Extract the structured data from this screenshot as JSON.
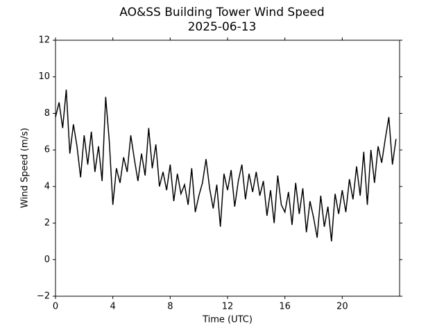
{
  "chart_data": {
    "type": "line",
    "title": "AO&SS Building Tower Wind Speed",
    "subtitle": "2025-06-13",
    "x_label": "Time (UTC)",
    "y_label": "Wind Speed (m/s)",
    "xlim": [
      0,
      24
    ],
    "ylim": [
      -2,
      12
    ],
    "xticks": [
      0,
      4,
      8,
      12,
      16,
      20
    ],
    "yticks": [
      {
        "value": -2,
        "label": "−2"
      },
      0,
      2,
      4,
      6,
      8,
      10,
      12
    ],
    "series": [
      {
        "name": "Wind Speed",
        "color": "#000000",
        "x": [
          0,
          0.25,
          0.5,
          0.75,
          1,
          1.25,
          1.5,
          1.75,
          2,
          2.25,
          2.5,
          2.75,
          3,
          3.25,
          3.5,
          3.75,
          4,
          4.25,
          4.5,
          4.75,
          5,
          5.25,
          5.5,
          5.75,
          6,
          6.25,
          6.5,
          6.75,
          7,
          7.25,
          7.5,
          7.75,
          8,
          8.25,
          8.5,
          8.75,
          9,
          9.25,
          9.5,
          9.75,
          10,
          10.25,
          10.5,
          10.75,
          11,
          11.25,
          11.5,
          11.75,
          12,
          12.25,
          12.5,
          12.75,
          13,
          13.25,
          13.5,
          13.75,
          14,
          14.25,
          14.5,
          14.75,
          15,
          15.25,
          15.5,
          15.75,
          16,
          16.25,
          16.5,
          16.75,
          17,
          17.25,
          17.5,
          17.75,
          18,
          18.25,
          18.5,
          18.75,
          19,
          19.25,
          19.5,
          19.75,
          20,
          20.25,
          20.5,
          20.75,
          21,
          21.25,
          21.5,
          21.75,
          22,
          22.25,
          22.5,
          22.75,
          23,
          23.25,
          23.5,
          23.75
        ],
        "values": [
          7.8,
          8.6,
          7.2,
          9.3,
          5.8,
          7.4,
          6.2,
          4.5,
          6.8,
          5.2,
          7.0,
          4.8,
          6.2,
          4.3,
          8.9,
          6.5,
          3.0,
          5.0,
          4.2,
          5.6,
          4.8,
          6.8,
          5.5,
          4.3,
          5.8,
          4.6,
          7.2,
          5.0,
          6.3,
          4.0,
          4.8,
          3.8,
          5.2,
          3.2,
          4.7,
          3.6,
          4.1,
          3.0,
          5.0,
          2.6,
          3.5,
          4.2,
          5.5,
          3.9,
          2.8,
          4.1,
          1.8,
          4.7,
          3.8,
          4.9,
          2.9,
          4.3,
          5.2,
          3.3,
          4.7,
          3.7,
          4.8,
          3.5,
          4.3,
          2.4,
          3.8,
          2.0,
          4.6,
          3.0,
          2.6,
          3.7,
          1.9,
          4.2,
          2.5,
          3.9,
          1.5,
          3.2,
          2.3,
          1.2,
          3.5,
          1.8,
          2.9,
          1.0,
          3.6,
          2.5,
          3.8,
          2.6,
          4.4,
          3.3,
          5.1,
          3.5,
          5.9,
          3.0,
          6.0,
          4.2,
          6.2,
          5.3,
          6.6,
          7.8,
          5.2,
          6.6
        ]
      }
    ]
  }
}
